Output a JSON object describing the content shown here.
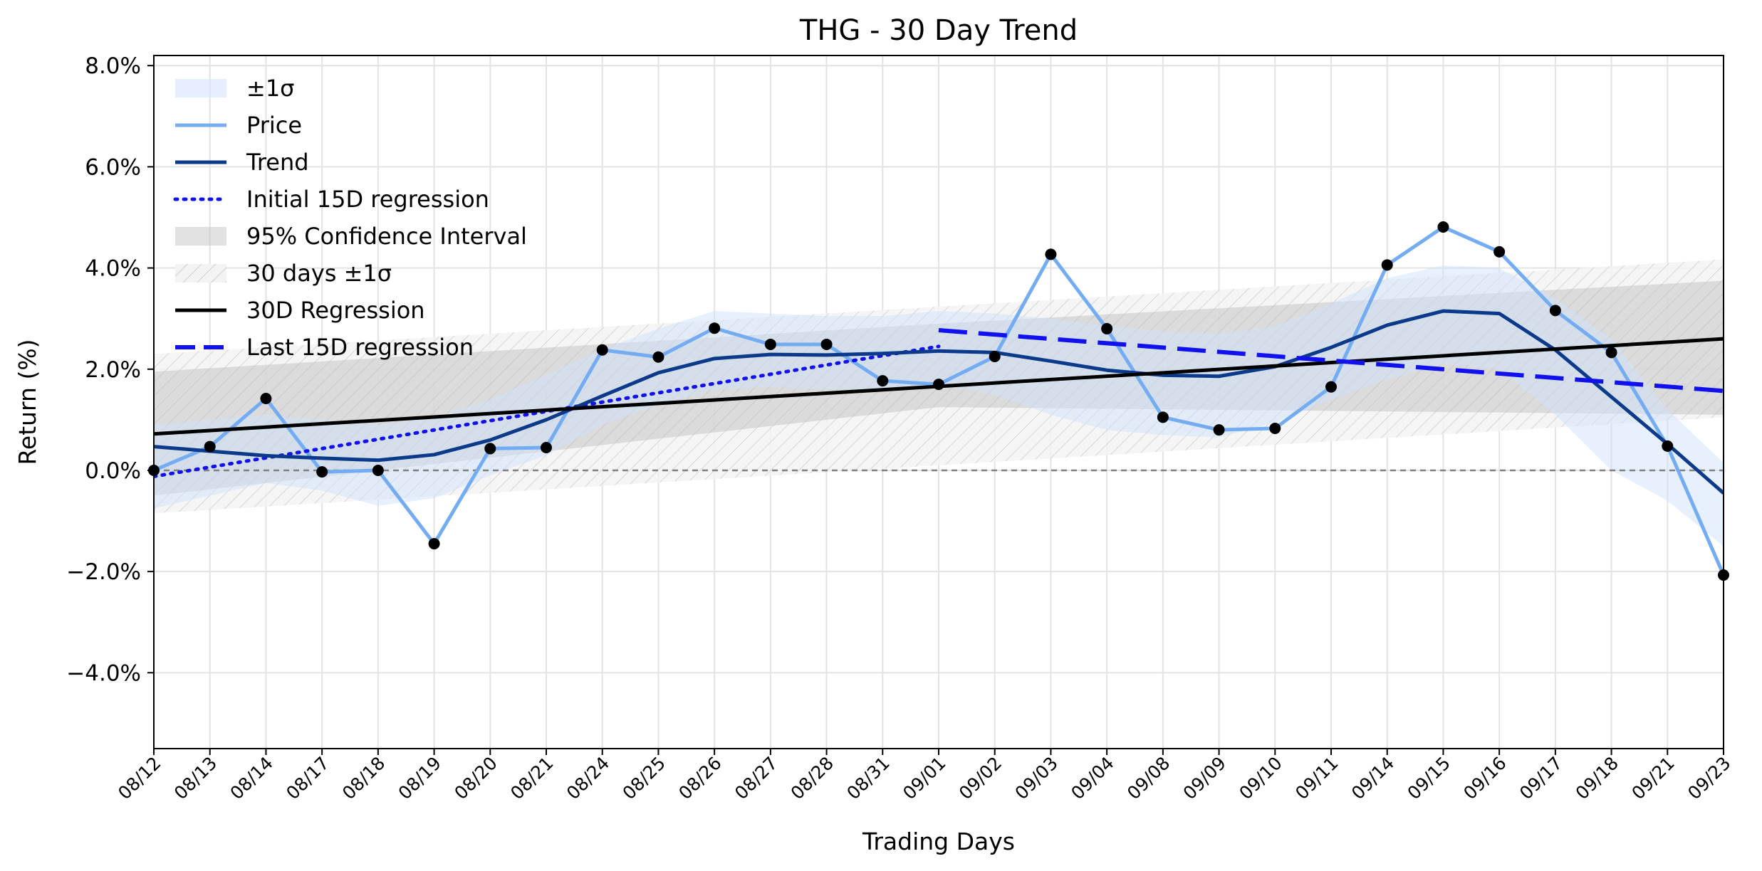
{
  "chart_data": {
    "type": "line",
    "title": "THG - 30 Day Trend",
    "xlabel": "Trading Days",
    "ylabel": "Return (%)",
    "categories": [
      "08/12",
      "08/13",
      "08/14",
      "08/17",
      "08/18",
      "08/19",
      "08/20",
      "08/21",
      "08/24",
      "08/25",
      "08/26",
      "08/27",
      "08/28",
      "08/31",
      "09/01",
      "09/02",
      "09/03",
      "09/04",
      "09/08",
      "09/09",
      "09/10",
      "09/11",
      "09/14",
      "09/15",
      "09/16",
      "09/17",
      "09/18",
      "09/21",
      "09/23"
    ],
    "ylim": [
      -5.5,
      8.2
    ],
    "yticks": [
      -4,
      -2,
      0,
      2,
      4,
      6,
      8
    ],
    "ytick_labels": [
      "−4.0%",
      "−2.0%",
      "0.0%",
      "2.0%",
      "4.0%",
      "6.0%",
      "8.0%"
    ],
    "grid": true,
    "legend_position": "upper-left",
    "zero_line": 0,
    "series": [
      {
        "name": "Price",
        "color": "#74acf2",
        "values": [
          0.0,
          0.47,
          1.42,
          -0.03,
          0.0,
          -1.45,
          0.43,
          0.45,
          2.38,
          2.24,
          2.81,
          2.49,
          2.49,
          1.77,
          1.7,
          2.25,
          4.27,
          2.8,
          1.05,
          0.8,
          0.83,
          1.65,
          4.06,
          4.81,
          4.32,
          3.16,
          2.33,
          0.48,
          -2.07
        ]
      },
      {
        "name": "Trend",
        "color": "#0b3a8a",
        "values": [
          0.47,
          0.38,
          0.29,
          0.24,
          0.2,
          0.31,
          0.6,
          1.0,
          1.47,
          1.93,
          2.21,
          2.29,
          2.28,
          2.31,
          2.36,
          2.33,
          2.16,
          1.98,
          1.88,
          1.86,
          2.05,
          2.43,
          2.87,
          3.15,
          3.1,
          2.38,
          1.45,
          0.52,
          -0.45
        ]
      },
      {
        "name": "Initial 15D regression",
        "color": "#1111ee",
        "x": [
          "08/12",
          "09/01"
        ],
        "values": [
          -0.12,
          2.45
        ]
      },
      {
        "name": "30D Regression",
        "color": "#000000",
        "x": [
          "08/12",
          "09/23"
        ],
        "values": [
          0.72,
          2.6
        ]
      },
      {
        "name": "Last 15D regression",
        "color": "#1111ee",
        "x": [
          "09/01",
          "09/23"
        ],
        "values": [
          2.77,
          1.57
        ]
      }
    ],
    "bands": [
      {
        "name": "±1σ",
        "color": "#dbeafc",
        "lower": [
          -0.75,
          -0.5,
          -0.25,
          -0.4,
          -0.7,
          -0.55,
          -0.1,
          0.3,
          0.9,
          1.3,
          1.6,
          1.65,
          1.6,
          1.6,
          1.7,
          1.5,
          1.1,
          0.8,
          0.7,
          0.65,
          0.95,
          1.4,
          1.8,
          2.1,
          2.0,
          1.1,
          0.0,
          -0.6,
          -1.5
        ],
        "upper": [
          0.9,
          1.0,
          1.1,
          1.0,
          0.9,
          1.05,
          1.4,
          1.9,
          2.4,
          2.8,
          3.15,
          3.1,
          3.05,
          3.05,
          3.15,
          3.1,
          3.0,
          2.85,
          2.75,
          2.7,
          2.85,
          3.3,
          3.8,
          4.05,
          4.0,
          3.4,
          2.6,
          1.2,
          0.15
        ]
      },
      {
        "name": "95% Confidence Interval",
        "color": "#bdbdbd",
        "x": [
          "08/12",
          "09/01",
          "09/23"
        ],
        "lower": [
          -0.5,
          1.25,
          1.1
        ],
        "upper": [
          1.95,
          2.9,
          3.75
        ]
      },
      {
        "name": "30 days ±1σ",
        "color": "#d5d5d5",
        "x": [
          "08/12",
          "09/23"
        ],
        "lower": [
          -0.85,
          1.05
        ],
        "upper": [
          2.3,
          4.17
        ]
      }
    ],
    "legend": [
      {
        "label": "±1σ",
        "kind": "patch",
        "color": "#dbeafc"
      },
      {
        "label": "Price",
        "kind": "line",
        "color": "#74acf2",
        "style": "solid"
      },
      {
        "label": "Trend",
        "kind": "line",
        "color": "#0b3a8a",
        "style": "solid"
      },
      {
        "label": "Initial 15D regression",
        "kind": "line",
        "color": "#1111ee",
        "style": "dotted"
      },
      {
        "label": "95% Confidence Interval",
        "kind": "patch",
        "color": "#bdbdbd"
      },
      {
        "label": "30 days ±1σ",
        "kind": "hatch",
        "color": "#d5d5d5"
      },
      {
        "label": "30D Regression",
        "kind": "line",
        "color": "#000000",
        "style": "solid"
      },
      {
        "label": "Last 15D regression",
        "kind": "line",
        "color": "#1111ee",
        "style": "dashed"
      }
    ]
  }
}
